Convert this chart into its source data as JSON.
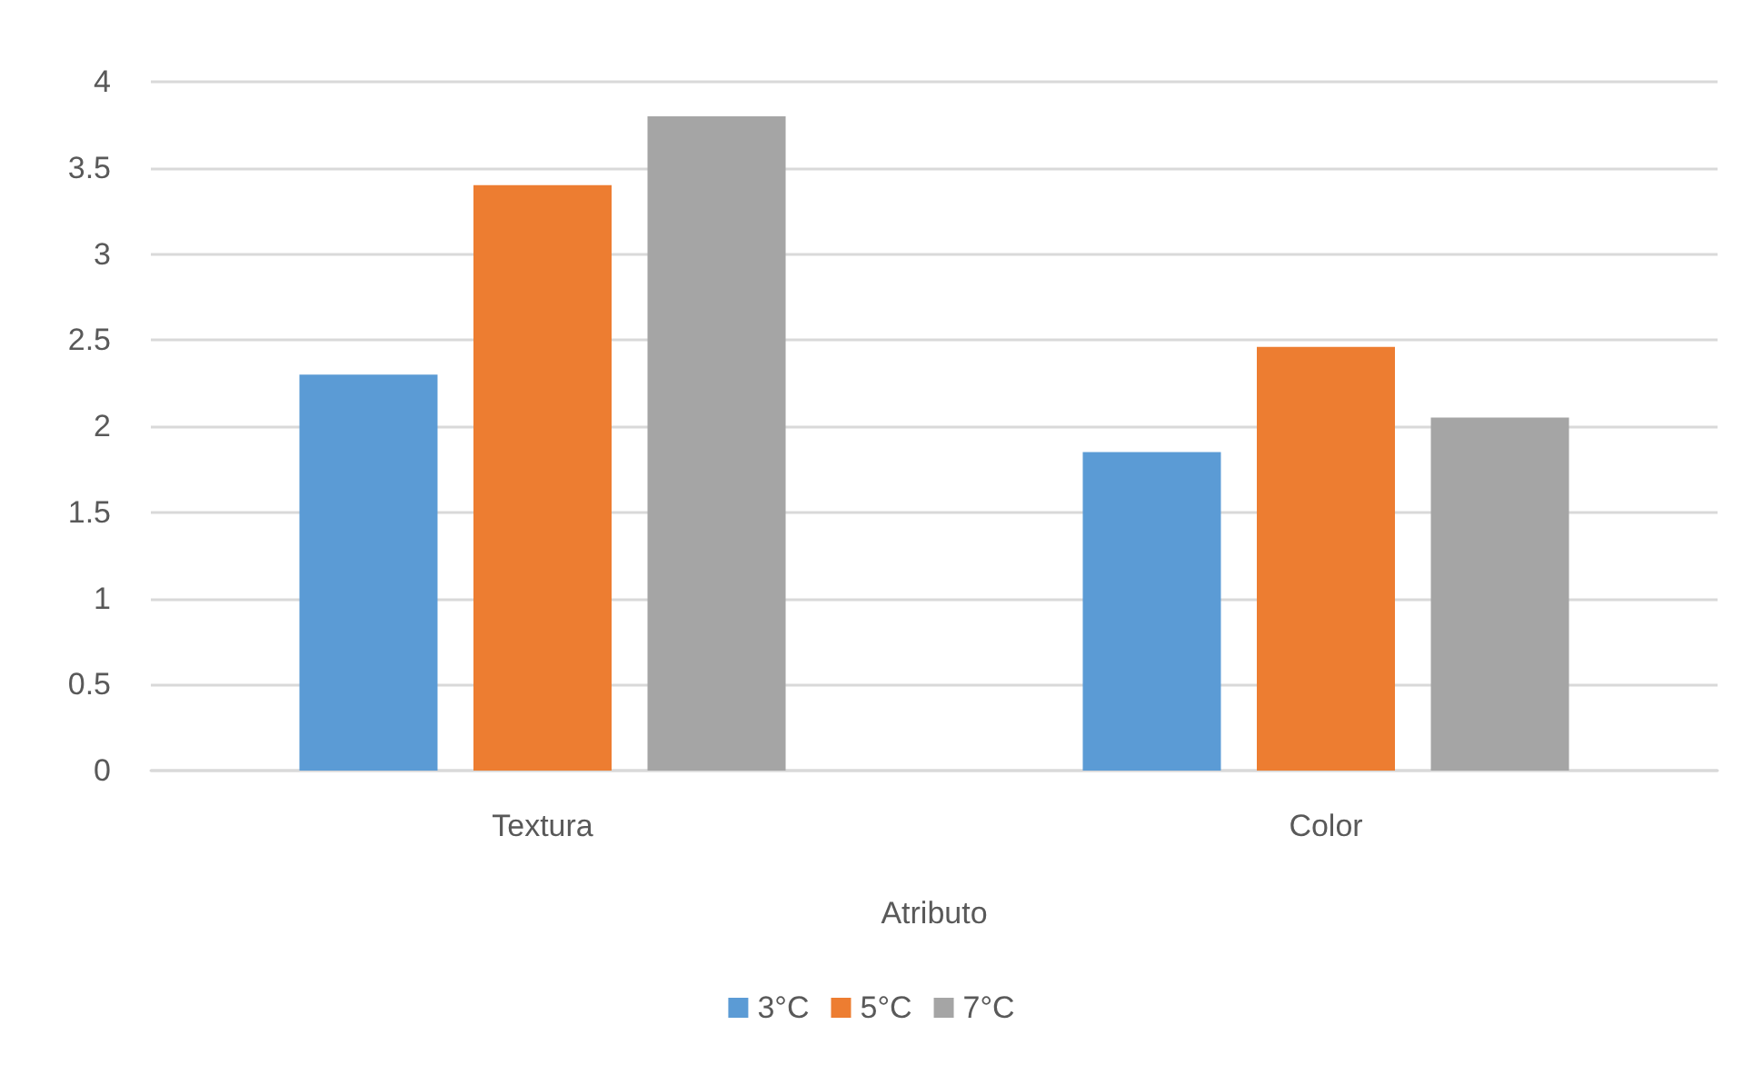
{
  "chart_data": {
    "type": "bar",
    "xlabel": "Atributo",
    "categories": [
      "Textura",
      "Color"
    ],
    "series": [
      {
        "name": "3°C",
        "color": "#5b9bd5",
        "values": [
          2.3,
          1.85
        ]
      },
      {
        "name": "5°C",
        "color": "#ed7d31",
        "values": [
          3.4,
          2.46
        ]
      },
      {
        "name": "7°C",
        "color": "#a5a5a5",
        "values": [
          3.8,
          2.05
        ]
      }
    ],
    "ylim": [
      0,
      4
    ],
    "yticks": [
      0,
      0.5,
      1,
      1.5,
      2,
      2.5,
      3,
      3.5,
      4
    ],
    "grid": "y",
    "legend": "bottom"
  }
}
